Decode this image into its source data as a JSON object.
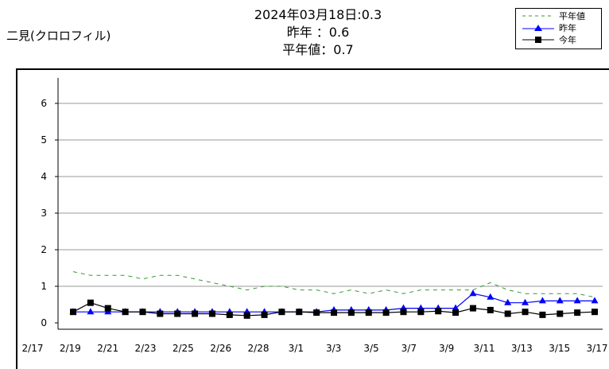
{
  "station": "二見(クロロフィル)",
  "header": {
    "line1": "2024年03月18日:0.3",
    "line2": "昨年 ：0.6",
    "line3": "平年値：0.7"
  },
  "colors": {
    "normal": "#339933",
    "last_year": "#0000ff",
    "this_year": "#000000"
  },
  "chart_data": {
    "type": "line",
    "title": "",
    "xlabel": "",
    "ylabel": "",
    "ylim": [
      0,
      6.5
    ],
    "yticks": [
      0,
      1,
      2,
      3,
      4,
      5,
      6
    ],
    "grid": true,
    "legend_position": "top-right",
    "x_dates": [
      "2/17",
      "2/18",
      "2/19",
      "2/20",
      "2/21",
      "2/22",
      "2/23",
      "2/24",
      "2/25",
      "2/26",
      "2/27",
      "2/28",
      "2/29",
      "3/1",
      "3/2",
      "3/3",
      "3/4",
      "3/5",
      "3/6",
      "3/7",
      "3/8",
      "3/9",
      "3/10",
      "3/11",
      "3/12",
      "3/13",
      "3/14",
      "3/15",
      "3/16",
      "3/17",
      "3/18"
    ],
    "xtick_labels": [
      "2/17",
      "2/19",
      "2/21",
      "2/23",
      "2/25",
      "2/26",
      "2/28",
      "3/1",
      "3/3",
      "3/5",
      "3/7",
      "3/9",
      "3/11",
      "3/13",
      "3/15",
      "3/17"
    ],
    "series": [
      {
        "name": "平年値",
        "style": "dashed",
        "marker": "none",
        "values": [
          1.4,
          1.3,
          1.3,
          1.3,
          1.2,
          1.3,
          1.3,
          1.2,
          1.1,
          1.0,
          0.9,
          1.0,
          1.0,
          0.9,
          0.9,
          0.8,
          0.9,
          0.8,
          0.9,
          0.8,
          0.9,
          0.9,
          0.9,
          0.9,
          1.1,
          0.9,
          0.8,
          0.8,
          0.8,
          0.8,
          0.7
        ]
      },
      {
        "name": "昨年",
        "style": "solid",
        "marker": "triangle",
        "values": [
          0.3,
          0.3,
          0.3,
          0.3,
          0.3,
          0.3,
          0.3,
          0.3,
          0.3,
          0.3,
          0.3,
          0.3,
          0.3,
          0.3,
          0.3,
          0.35,
          0.35,
          0.35,
          0.35,
          0.4,
          0.4,
          0.4,
          0.4,
          0.8,
          0.7,
          0.55,
          0.55,
          0.6,
          0.6,
          0.6,
          0.6
        ]
      },
      {
        "name": "今年",
        "style": "solid",
        "marker": "square",
        "values": [
          0.3,
          0.55,
          0.4,
          0.3,
          0.3,
          0.25,
          0.25,
          0.25,
          0.25,
          0.22,
          0.2,
          0.22,
          0.3,
          0.3,
          0.28,
          0.28,
          0.28,
          0.28,
          0.28,
          0.3,
          0.3,
          0.32,
          0.28,
          0.4,
          0.35,
          0.25,
          0.3,
          0.22,
          0.25,
          0.28,
          0.3
        ]
      }
    ]
  }
}
